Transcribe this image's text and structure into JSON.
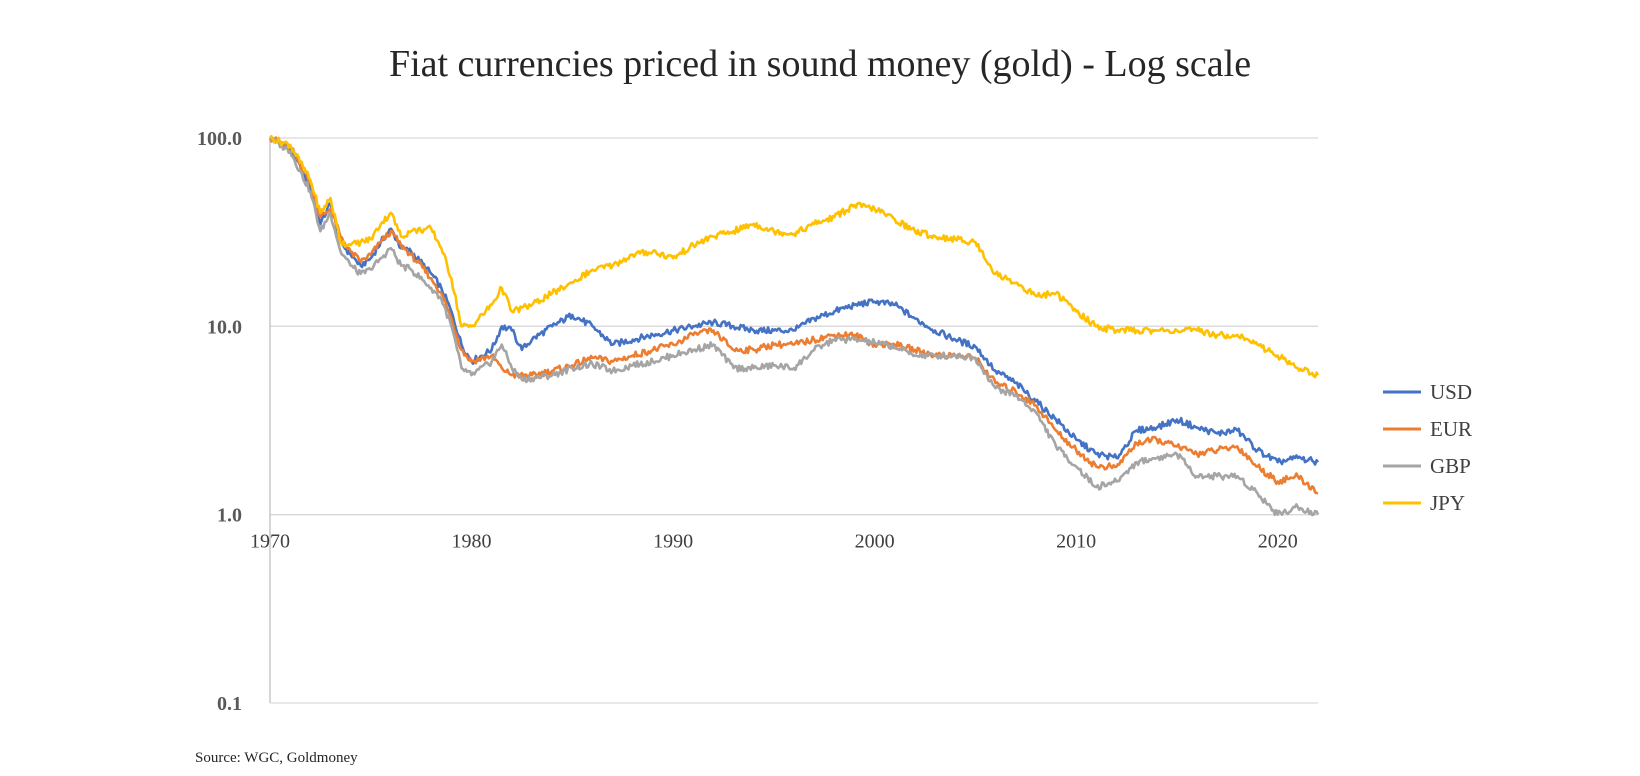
{
  "chart_data": {
    "type": "line",
    "title": "Fiat currencies priced in sound money (gold) - Log scale",
    "source": "Source: WGC, Goldmoney",
    "xlabel": "",
    "ylabel": "",
    "y_scale": "log",
    "ylim": [
      0.1,
      100
    ],
    "xlim": [
      1970,
      2022
    ],
    "grid": "horizontal",
    "legend_position": "right",
    "x_ticks": [
      "1970",
      "1980",
      "1990",
      "2000",
      "2010",
      "2020"
    ],
    "y_ticks": [
      "100.0",
      "10.0",
      "1.0",
      "0.1"
    ],
    "series": [
      {
        "name": "USD",
        "color": "#4472C4",
        "points": [
          [
            1970,
            100
          ],
          [
            1971,
            88
          ],
          [
            1972,
            55
          ],
          [
            1972.5,
            35
          ],
          [
            1973,
            45
          ],
          [
            1973.5,
            28
          ],
          [
            1974,
            24
          ],
          [
            1974.5,
            21
          ],
          [
            1975,
            23
          ],
          [
            1975.5,
            28
          ],
          [
            1976,
            33
          ],
          [
            1976.5,
            26
          ],
          [
            1977,
            25
          ],
          [
            1978,
            19
          ],
          [
            1978.5,
            16
          ],
          [
            1979,
            12
          ],
          [
            1979.5,
            8
          ],
          [
            1980,
            6.5
          ],
          [
            1981,
            7.5
          ],
          [
            1981.5,
            10
          ],
          [
            1982,
            9.5
          ],
          [
            1982.5,
            7.5
          ],
          [
            1983,
            8.5
          ],
          [
            1984,
            10
          ],
          [
            1985,
            11.5
          ],
          [
            1986,
            10
          ],
          [
            1987,
            8
          ],
          [
            1988,
            8.5
          ],
          [
            1989,
            9
          ],
          [
            1990,
            9.5
          ],
          [
            1991,
            10
          ],
          [
            1992,
            10.5
          ],
          [
            1993,
            10
          ],
          [
            1994,
            9.5
          ],
          [
            1995,
            9.5
          ],
          [
            1996,
            9.5
          ],
          [
            1997,
            11
          ],
          [
            1998,
            12
          ],
          [
            1999,
            13
          ],
          [
            2000,
            13.5
          ],
          [
            2001,
            13
          ],
          [
            2002,
            11
          ],
          [
            2003,
            9.5
          ],
          [
            2004,
            8.5
          ],
          [
            2005,
            7.8
          ],
          [
            2006,
            5.8
          ],
          [
            2007,
            5
          ],
          [
            2008,
            4
          ],
          [
            2009,
            3.2
          ],
          [
            2010,
            2.5
          ],
          [
            2011,
            2.1
          ],
          [
            2012,
            2
          ],
          [
            2013,
            2.8
          ],
          [
            2014,
            2.9
          ],
          [
            2015,
            3.2
          ],
          [
            2016,
            2.9
          ],
          [
            2017,
            2.7
          ],
          [
            2018,
            2.8
          ],
          [
            2019,
            2.2
          ],
          [
            2020,
            1.9
          ],
          [
            2021,
            2
          ],
          [
            2022,
            1.9
          ]
        ]
      },
      {
        "name": "EUR",
        "color": "#ED7D31",
        "points": [
          [
            1970,
            100
          ],
          [
            1971,
            90
          ],
          [
            1972,
            58
          ],
          [
            1972.5,
            38
          ],
          [
            1973,
            42
          ],
          [
            1973.5,
            30
          ],
          [
            1974,
            25
          ],
          [
            1974.5,
            22
          ],
          [
            1975,
            24
          ],
          [
            1975.5,
            28
          ],
          [
            1976,
            32
          ],
          [
            1976.5,
            27
          ],
          [
            1977,
            24
          ],
          [
            1978,
            18
          ],
          [
            1978.5,
            15
          ],
          [
            1979,
            11
          ],
          [
            1979.5,
            7.5
          ],
          [
            1980,
            6.5
          ],
          [
            1981,
            7
          ],
          [
            1981.5,
            6
          ],
          [
            1982,
            5.5
          ],
          [
            1983,
            5.5
          ],
          [
            1984,
            5.8
          ],
          [
            1985,
            6.2
          ],
          [
            1986,
            6.8
          ],
          [
            1987,
            6.5
          ],
          [
            1988,
            7
          ],
          [
            1989,
            7.5
          ],
          [
            1990,
            8
          ],
          [
            1991,
            9
          ],
          [
            1992,
            9.5
          ],
          [
            1993,
            7.5
          ],
          [
            1994,
            7.5
          ],
          [
            1995,
            8
          ],
          [
            1996,
            8
          ],
          [
            1997,
            8.5
          ],
          [
            1998,
            9
          ],
          [
            1999,
            9
          ],
          [
            2000,
            8
          ],
          [
            2001,
            8
          ],
          [
            2002,
            7.5
          ],
          [
            2003,
            7
          ],
          [
            2004,
            7
          ],
          [
            2005,
            6.8
          ],
          [
            2006,
            5
          ],
          [
            2007,
            4.5
          ],
          [
            2008,
            3.8
          ],
          [
            2009,
            2.8
          ],
          [
            2010,
            2.2
          ],
          [
            2011,
            1.8
          ],
          [
            2012,
            1.8
          ],
          [
            2013,
            2.4
          ],
          [
            2014,
            2.5
          ],
          [
            2015,
            2.3
          ],
          [
            2016,
            2.1
          ],
          [
            2017,
            2.2
          ],
          [
            2018,
            2.3
          ],
          [
            2019,
            1.8
          ],
          [
            2020,
            1.5
          ],
          [
            2021,
            1.6
          ],
          [
            2022,
            1.3
          ]
        ]
      },
      {
        "name": "GBP",
        "color": "#A5A5A5",
        "points": [
          [
            1970,
            100
          ],
          [
            1971,
            85
          ],
          [
            1972,
            52
          ],
          [
            1972.5,
            32
          ],
          [
            1973,
            40
          ],
          [
            1973.5,
            25
          ],
          [
            1974,
            21
          ],
          [
            1974.5,
            19
          ],
          [
            1975,
            20
          ],
          [
            1975.5,
            23
          ],
          [
            1976,
            26
          ],
          [
            1976.5,
            21
          ],
          [
            1977,
            20
          ],
          [
            1978,
            16
          ],
          [
            1978.5,
            14
          ],
          [
            1979,
            10
          ],
          [
            1979.5,
            6
          ],
          [
            1980,
            5.5
          ],
          [
            1981,
            6.5
          ],
          [
            1981.5,
            8
          ],
          [
            1982,
            6
          ],
          [
            1982.5,
            5.2
          ],
          [
            1983,
            5.3
          ],
          [
            1984,
            5.5
          ],
          [
            1985,
            6
          ],
          [
            1986,
            6.3
          ],
          [
            1987,
            5.8
          ],
          [
            1988,
            6.2
          ],
          [
            1989,
            6.5
          ],
          [
            1990,
            7
          ],
          [
            1991,
            7.5
          ],
          [
            1992,
            8
          ],
          [
            1993,
            6
          ],
          [
            1994,
            6
          ],
          [
            1995,
            6.2
          ],
          [
            1996,
            6
          ],
          [
            1997,
            7.5
          ],
          [
            1998,
            8.5
          ],
          [
            1999,
            8.5
          ],
          [
            2000,
            8.2
          ],
          [
            2001,
            7.8
          ],
          [
            2002,
            7
          ],
          [
            2003,
            7
          ],
          [
            2004,
            7
          ],
          [
            2005,
            6.8
          ],
          [
            2006,
            4.7
          ],
          [
            2007,
            4.3
          ],
          [
            2008,
            3.5
          ],
          [
            2009,
            2.3
          ],
          [
            2010,
            1.8
          ],
          [
            2011,
            1.4
          ],
          [
            2012,
            1.5
          ],
          [
            2013,
            1.9
          ],
          [
            2014,
            2
          ],
          [
            2015,
            2.1
          ],
          [
            2016,
            1.6
          ],
          [
            2017,
            1.6
          ],
          [
            2018,
            1.6
          ],
          [
            2019,
            1.3
          ],
          [
            2020,
            1
          ],
          [
            2021,
            1.1
          ],
          [
            2022,
            1
          ]
        ]
      },
      {
        "name": "JPY",
        "color": "#FFC000",
        "points": [
          [
            1970,
            100
          ],
          [
            1971,
            92
          ],
          [
            1972,
            60
          ],
          [
            1972.5,
            40
          ],
          [
            1973,
            48
          ],
          [
            1973.5,
            28
          ],
          [
            1974,
            27
          ],
          [
            1975,
            29
          ],
          [
            1975.5,
            35
          ],
          [
            1976,
            40
          ],
          [
            1976.5,
            30
          ],
          [
            1977,
            32
          ],
          [
            1978,
            33
          ],
          [
            1978.5,
            26
          ],
          [
            1979,
            18
          ],
          [
            1979.5,
            10
          ],
          [
            1980,
            10
          ],
          [
            1981,
            13
          ],
          [
            1981.5,
            16
          ],
          [
            1982,
            12
          ],
          [
            1983,
            13
          ],
          [
            1984,
            15
          ],
          [
            1985,
            17
          ],
          [
            1986,
            20
          ],
          [
            1987,
            21
          ],
          [
            1988,
            24
          ],
          [
            1989,
            25
          ],
          [
            1990,
            23
          ],
          [
            1991,
            27
          ],
          [
            1992,
            30
          ],
          [
            1993,
            32
          ],
          [
            1994,
            35
          ],
          [
            1995,
            32
          ],
          [
            1996,
            31
          ],
          [
            1997,
            35
          ],
          [
            1998,
            38
          ],
          [
            1999,
            44
          ],
          [
            2000,
            42
          ],
          [
            2001,
            37
          ],
          [
            2002,
            32
          ],
          [
            2003,
            30
          ],
          [
            2004,
            29
          ],
          [
            2005,
            28
          ],
          [
            2006,
            19
          ],
          [
            2007,
            17
          ],
          [
            2008,
            14.5
          ],
          [
            2009,
            15
          ],
          [
            2010,
            12
          ],
          [
            2011,
            10
          ],
          [
            2012,
            9.5
          ],
          [
            2013,
            9.5
          ],
          [
            2014,
            9.5
          ],
          [
            2015,
            9.5
          ],
          [
            2016,
            9.5
          ],
          [
            2017,
            9
          ],
          [
            2018,
            9
          ],
          [
            2019,
            8
          ],
          [
            2020,
            7
          ],
          [
            2021,
            6
          ],
          [
            2022,
            5.5
          ]
        ]
      }
    ]
  }
}
